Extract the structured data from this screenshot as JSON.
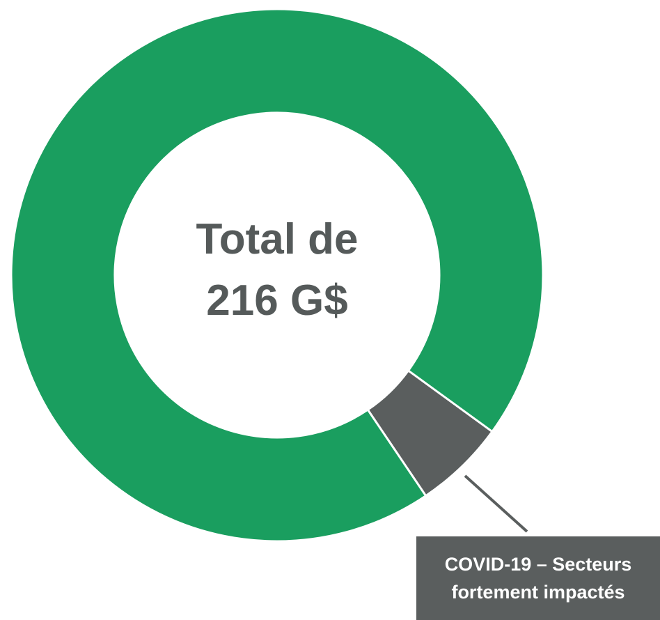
{
  "chart_data": {
    "type": "donut",
    "center_label": "Total de 216 G$",
    "categories": [
      "COVID-19 – Secteurs fortement impactés",
      null
    ],
    "values": [
      12,
      204
    ],
    "colors": [
      "#5a5e5e",
      "#1a9e5f"
    ]
  }
}
